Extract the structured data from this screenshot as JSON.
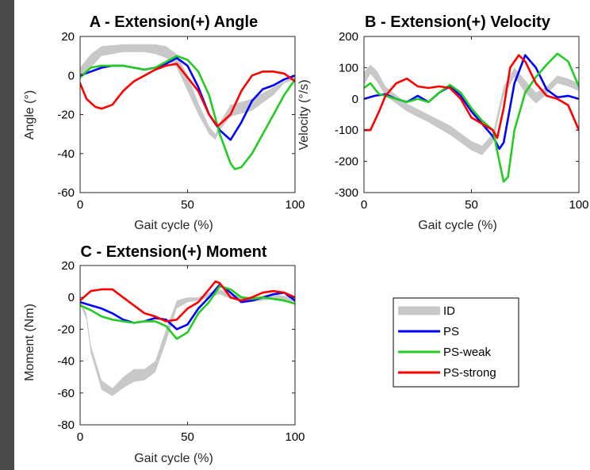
{
  "legend": {
    "placement": "box-lower-right",
    "entries": [
      {
        "name": "ID",
        "color": "#c8c8c8"
      },
      {
        "name": "PS",
        "color": "#0000ff"
      },
      {
        "name": "PS-weak",
        "color": "#22cc22"
      },
      {
        "name": "PS-strong",
        "color": "#ff0000"
      }
    ]
  },
  "chart_data": [
    {
      "type": "line",
      "title": "A - Extension(+) Angle",
      "xlabel": "Gait cycle (%)",
      "ylabel": "Angle (°)",
      "xlim": [
        0,
        100
      ],
      "ylim": [
        -60,
        20
      ],
      "xticks": [
        "0",
        "50",
        "100"
      ],
      "yticks": [
        "-60",
        "-40",
        "-20",
        "0",
        "20"
      ],
      "grid": false,
      "band": {
        "name": "ID",
        "x": [
          0,
          5,
          10,
          20,
          30,
          35,
          40,
          45,
          50,
          55,
          60,
          63,
          65,
          70,
          80,
          90,
          95,
          100
        ],
        "upper": [
          4,
          11,
          15,
          16,
          16,
          16,
          15,
          11,
          0,
          -14,
          -26,
          -30,
          -24,
          -15,
          -12,
          -6,
          -3,
          0
        ],
        "lower": [
          -2,
          4,
          10,
          12,
          12,
          11,
          9,
          4,
          -8,
          -20,
          -30,
          -33,
          -28,
          -21,
          -18,
          -10,
          -4,
          -2
        ]
      },
      "series": [
        {
          "name": "PS",
          "x": [
            0,
            5,
            10,
            15,
            20,
            25,
            30,
            35,
            40,
            45,
            50,
            55,
            60,
            65,
            70,
            75,
            80,
            85,
            90,
            95,
            100
          ],
          "y": [
            0,
            2,
            4,
            5,
            5,
            4,
            3,
            4,
            6,
            9,
            5,
            -6,
            -20,
            -28,
            -33,
            -24,
            -13,
            -7,
            -5,
            -2,
            0
          ]
        },
        {
          "name": "PS-weak",
          "x": [
            0,
            5,
            10,
            15,
            20,
            25,
            30,
            35,
            40,
            45,
            50,
            55,
            60,
            65,
            70,
            72,
            75,
            80,
            85,
            90,
            95,
            100
          ],
          "y": [
            -1,
            4,
            5,
            5,
            5,
            4,
            3,
            4,
            7,
            10,
            8,
            2,
            -10,
            -30,
            -45,
            -48,
            -47,
            -40,
            -30,
            -20,
            -10,
            -2
          ]
        },
        {
          "name": "PS-strong",
          "x": [
            0,
            3,
            7,
            10,
            15,
            20,
            25,
            30,
            35,
            40,
            45,
            50,
            55,
            60,
            64,
            70,
            75,
            80,
            85,
            90,
            95,
            100
          ],
          "y": [
            -4,
            -12,
            -16,
            -17,
            -15,
            -8,
            -3,
            0,
            3,
            5,
            6,
            -1,
            -8,
            -20,
            -26,
            -20,
            -8,
            0,
            2,
            2,
            1,
            -3
          ]
        }
      ]
    },
    {
      "type": "line",
      "title": "B - Extension(+) Velocity",
      "xlabel": "Gait cycle (%)",
      "ylabel": "Velocity (°/s)",
      "xlim": [
        0,
        100
      ],
      "ylim": [
        -300,
        200
      ],
      "xticks": [
        "0",
        "50",
        "100"
      ],
      "yticks": [
        "-300",
        "-200",
        "-100",
        "0",
        "100",
        "200"
      ],
      "grid": false,
      "band": {
        "name": "ID",
        "x": [
          0,
          3,
          6,
          10,
          20,
          30,
          40,
          50,
          55,
          60,
          65,
          70,
          75,
          80,
          85,
          90,
          95,
          100
        ],
        "upper": [
          85,
          110,
          90,
          40,
          -15,
          -50,
          -85,
          -135,
          -150,
          -110,
          40,
          100,
          60,
          20,
          40,
          75,
          65,
          50
        ],
        "lower": [
          45,
          80,
          55,
          10,
          -40,
          -75,
          -115,
          -165,
          -180,
          -140,
          10,
          70,
          20,
          -15,
          15,
          50,
          40,
          25
        ]
      },
      "series": [
        {
          "name": "PS",
          "x": [
            0,
            5,
            10,
            15,
            20,
            25,
            30,
            35,
            40,
            45,
            50,
            55,
            60,
            63,
            65,
            70,
            75,
            80,
            85,
            90,
            95,
            100
          ],
          "y": [
            0,
            10,
            15,
            0,
            -10,
            10,
            -10,
            20,
            40,
            10,
            -40,
            -80,
            -120,
            -160,
            -140,
            50,
            140,
            100,
            30,
            5,
            10,
            0
          ]
        },
        {
          "name": "PS-weak",
          "x": [
            0,
            3,
            7,
            10,
            15,
            20,
            25,
            30,
            35,
            40,
            45,
            50,
            55,
            60,
            63,
            65,
            67,
            70,
            75,
            80,
            85,
            90,
            95,
            100
          ],
          "y": [
            35,
            50,
            15,
            10,
            0,
            -10,
            0,
            -10,
            20,
            45,
            20,
            -30,
            -70,
            -100,
            -200,
            -265,
            -250,
            -100,
            20,
            70,
            110,
            145,
            120,
            40
          ]
        },
        {
          "name": "PS-strong",
          "x": [
            0,
            3,
            7,
            10,
            15,
            20,
            25,
            30,
            35,
            40,
            45,
            50,
            55,
            60,
            62,
            65,
            68,
            72,
            75,
            80,
            85,
            90,
            95,
            100
          ],
          "y": [
            -100,
            -100,
            -40,
            10,
            50,
            65,
            40,
            35,
            40,
            35,
            0,
            -60,
            -80,
            -100,
            -125,
            -30,
            100,
            140,
            120,
            50,
            10,
            0,
            -20,
            -100
          ]
        }
      ]
    },
    {
      "type": "line",
      "title": "C - Extension(+) Moment",
      "xlabel": "Gait cycle (%)",
      "ylabel": "Moment (Nm)",
      "xlim": [
        0,
        100
      ],
      "ylim": [
        -80,
        20
      ],
      "xticks": [
        "0",
        "50",
        "100"
      ],
      "yticks": [
        "-80",
        "-60",
        "-40",
        "-20",
        "0",
        "20"
      ],
      "grid": false,
      "band": {
        "name": "ID",
        "x": [
          0,
          3,
          5,
          10,
          15,
          20,
          25,
          30,
          35,
          40,
          45,
          50,
          55,
          60,
          65,
          70,
          80,
          90,
          100
        ],
        "upper": [
          -2,
          -10,
          -30,
          -52,
          -57,
          -50,
          -45,
          -45,
          -40,
          -20,
          -2,
          0,
          0,
          3,
          5,
          2,
          0,
          2,
          0
        ],
        "lower": [
          -4,
          -14,
          -35,
          -58,
          -62,
          -57,
          -53,
          -52,
          -47,
          -28,
          -7,
          -3,
          -2,
          0,
          2,
          -1,
          -3,
          -1,
          -3
        ]
      },
      "series": [
        {
          "name": "PS",
          "x": [
            0,
            5,
            10,
            15,
            20,
            25,
            30,
            35,
            40,
            45,
            50,
            55,
            60,
            65,
            70,
            75,
            80,
            85,
            90,
            95,
            100
          ],
          "y": [
            -3,
            -5,
            -7,
            -10,
            -14,
            -16,
            -15,
            -13,
            -14,
            -20,
            -17,
            -7,
            0,
            8,
            3,
            -3,
            -2,
            0,
            2,
            3,
            -2
          ]
        },
        {
          "name": "PS-weak",
          "x": [
            0,
            5,
            10,
            15,
            20,
            25,
            30,
            35,
            40,
            45,
            50,
            55,
            60,
            65,
            70,
            75,
            80,
            85,
            90,
            95,
            100
          ],
          "y": [
            -5,
            -8,
            -12,
            -14,
            -15,
            -16,
            -15,
            -15,
            -18,
            -26,
            -22,
            -10,
            -3,
            7,
            5,
            0,
            -1,
            0,
            -1,
            -2,
            -4
          ]
        },
        {
          "name": "PS-strong",
          "x": [
            0,
            5,
            10,
            15,
            20,
            25,
            30,
            35,
            40,
            45,
            50,
            55,
            60,
            63,
            65,
            70,
            75,
            80,
            85,
            90,
            95,
            100
          ],
          "y": [
            -2,
            4,
            5,
            5,
            0,
            -5,
            -10,
            -12,
            -15,
            -14,
            -7,
            -3,
            5,
            10,
            9,
            0,
            -2,
            0,
            3,
            4,
            3,
            0
          ]
        }
      ]
    }
  ]
}
